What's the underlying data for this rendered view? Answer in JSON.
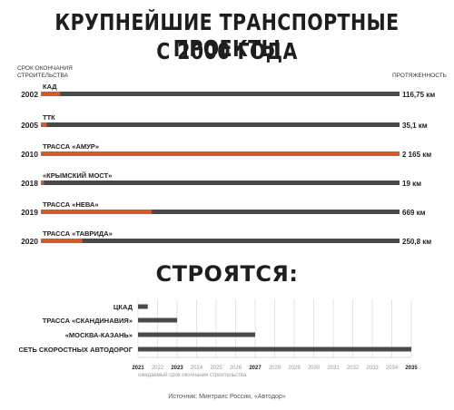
{
  "title_line1": "КРУПНЕЙШИЕ ТРАНСПОРТНЫЕ ПРОЕКТЫ",
  "title_line2": "С 2000 ГОДА",
  "left_header": "СРОК ОКОНЧАНИЯ\nСТРОИТЕЛЬСТВА",
  "right_header": "ПРОТЯЖЕННОСТЬ",
  "section2_title": "СТРОЯТСЯ:",
  "source": "Источник: Минтранс России, «Автодор»",
  "colors": {
    "accent": "#d9582b",
    "track": "#4a4a4a",
    "grid": "#dddddd"
  },
  "chart_data": [
    {
      "type": "bar",
      "orientation": "horizontal",
      "series": [
        {
          "name": "КАД",
          "year": "2002",
          "value_label": "116,75 км",
          "value": 116.75
        },
        {
          "name": "ТТК",
          "year": "2005",
          "value_label": "35,1 км",
          "value": 35.1
        },
        {
          "name": "ТРАССА «АМУР»",
          "year": "2010",
          "value_label": "2 165 км",
          "value": 2165
        },
        {
          "name": "«КРЫМСКИЙ МОСТ»",
          "year": "2018",
          "value_label": "19 км",
          "value": 19
        },
        {
          "name": "ТРАССА «НЕВА»",
          "year": "2019",
          "value_label": "669 км",
          "value": 669
        },
        {
          "name": "ТРАССА «ТАВРИДА»",
          "year": "2020",
          "value_label": "250,8 км",
          "value": 250.8
        }
      ],
      "xlim": [
        0,
        2165
      ]
    },
    {
      "type": "bar",
      "orientation": "horizontal",
      "categories": [
        "ЦКАД",
        "ТРАССА «СКАНДИНАВИЯ»",
        "«МОСКВА-КАЗАНЬ»",
        "СЕТЬ СКОРОСТНЫХ АВТОДОРОГ"
      ],
      "values": [
        2021.5,
        2023,
        2027,
        2035
      ],
      "x_ticks": [
        "2021",
        "2022",
        "2023",
        "2024",
        "2025",
        "2026",
        "2027",
        "2028",
        "2029",
        "2030",
        "2031",
        "2032",
        "2033",
        "2034",
        "2035"
      ],
      "bold_ticks": [
        "2021",
        "2023",
        "2027",
        "2035"
      ],
      "xlabel": "ожидаемый срок окончания строительства",
      "xlim": [
        2021,
        2035
      ]
    }
  ]
}
